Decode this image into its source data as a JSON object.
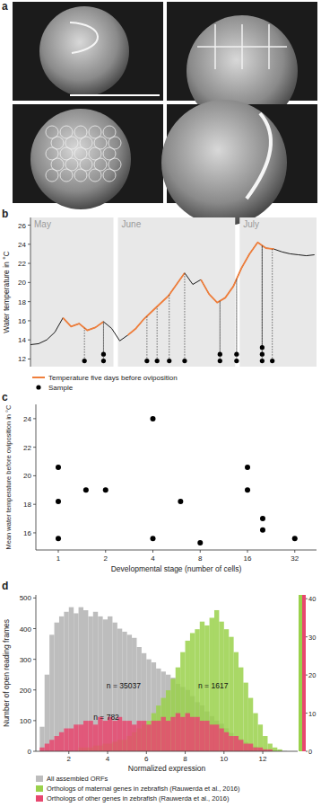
{
  "chart_data": [
    {
      "type": "image",
      "title": "a"
    },
    {
      "type": "line",
      "title": "b",
      "ylabel": "Water temperature in °C",
      "x": [
        0,
        2,
        4,
        6,
        8,
        10,
        12,
        14,
        16,
        18,
        20,
        22,
        24,
        26,
        28,
        30,
        32,
        34,
        36,
        38,
        40,
        42,
        44,
        46,
        48,
        50,
        52,
        54,
        56,
        58,
        60,
        62,
        64,
        66,
        68,
        70
      ],
      "xlim": [
        0,
        70.5
      ],
      "ylim": [
        11.2,
        26.8
      ],
      "yticks": [
        12,
        14,
        16,
        18,
        20,
        22,
        24,
        26
      ],
      "spans": [
        {
          "label": "May",
          "start": 0,
          "end": 21
        },
        {
          "label": "June",
          "start": 21,
          "end": 51
        },
        {
          "label": "July",
          "start": 51,
          "end": 70.5
        }
      ],
      "series": [
        {
          "color": "#1a1a1a",
          "values": [
            13.5,
            13.6,
            14.0,
            14.8,
            16.3,
            15.4,
            15.7,
            15.0,
            15.3,
            15.9,
            15.2,
            13.9,
            14.5,
            15.2,
            16.2,
            17.0,
            17.8,
            18.6,
            19.8,
            21.0,
            19.8,
            20.3,
            18.8,
            17.9,
            18.4,
            19.6,
            21.5,
            23.0,
            24.2,
            23.6,
            23.5,
            23.2,
            23.0,
            22.9,
            22.8,
            22.9
          ]
        },
        {
          "name": "Temperature five days before oviposition",
          "color": "#f07f3c",
          "values": [
            null,
            null,
            null,
            null,
            16.3,
            15.4,
            15.7,
            15.0,
            15.3,
            15.9,
            null,
            null,
            14.5,
            15.2,
            16.2,
            17.0,
            17.8,
            18.6,
            19.8,
            21.0,
            null,
            20.3,
            18.8,
            17.9,
            18.4,
            19.6,
            21.5,
            23.0,
            24.2,
            23.6,
            23.5,
            null,
            null,
            null,
            null,
            null
          ]
        },
        {
          "name": "Sample",
          "type": "scatter",
          "color": "#000000",
          "marker": "circle",
          "x": [
            13.3,
            18.0,
            18.0,
            28.7,
            31.2,
            34.2,
            38.0,
            46.7,
            46.7,
            50.8,
            50.8,
            57.1,
            57.1,
            57.1,
            59.6
          ],
          "values": [
            11.8,
            11.8,
            12.5,
            11.8,
            11.8,
            11.8,
            11.8,
            11.8,
            12.5,
            11.8,
            12.5,
            11.8,
            12.5,
            13.2,
            11.8
          ]
        }
      ],
      "legend": "bottom",
      "grid": false
    },
    {
      "type": "scatter",
      "title": "c",
      "xlabel": "Developmental stage (number of cells)",
      "ylabel": "Mean water temperature before oviposition in °C",
      "x": [
        1,
        1,
        1,
        1.5,
        2,
        4,
        4,
        6,
        8,
        16,
        16,
        20,
        20,
        32
      ],
      "values": [
        20.6,
        18.2,
        15.6,
        19.0,
        19.0,
        24.0,
        15.6,
        18.2,
        15.3,
        20.6,
        19.0,
        17.0,
        16.2,
        15.6
      ],
      "log": "x",
      "xlim": [
        0.72,
        44
      ],
      "ylim": [
        14.8,
        25
      ],
      "xticks": [
        1,
        2,
        4,
        8,
        16,
        32
      ],
      "yticks": [
        16,
        18,
        20,
        22,
        24
      ],
      "color": "#000000",
      "marker": "circle",
      "grid": false
    },
    {
      "type": "histogram",
      "title": "d",
      "xlabel": "Normalized expression",
      "ylabel": "Number of open reading frames",
      "bins": [
        0.5,
        0.75,
        1,
        1.25,
        1.5,
        1.75,
        2,
        2.25,
        2.5,
        2.75,
        3,
        3.25,
        3.5,
        3.75,
        4,
        4.25,
        4.5,
        4.75,
        5,
        5.25,
        5.5,
        5.75,
        6,
        6.25,
        6.5,
        6.75,
        7,
        7.25,
        7.5,
        7.75,
        8,
        8.25,
        8.5,
        8.75,
        9,
        9.25,
        9.5,
        9.75,
        10,
        10.25,
        10.5,
        10.75,
        11,
        11.25,
        11.5,
        11.75,
        12,
        12.25,
        12.5,
        12.75,
        13,
        13.25,
        13.5
      ],
      "xlim": [
        0.3,
        13.8
      ],
      "xticks": [
        2,
        4,
        6,
        8,
        10,
        12
      ],
      "ylim": [
        0,
        510
      ],
      "yticks": [
        0,
        100,
        200,
        300,
        400,
        500
      ],
      "y2lim": [
        0,
        41
      ],
      "y2ticks": [
        0,
        10,
        20,
        30,
        40
      ],
      "series": [
        {
          "name": "All assembled ORFs",
          "color": "#bdbdbd",
          "values": [
            80,
            250,
            380,
            420,
            440,
            455,
            470,
            450,
            470,
            460,
            440,
            455,
            440,
            430,
            440,
            420,
            400,
            390,
            380,
            370,
            340,
            320,
            300,
            290,
            270,
            260,
            250,
            240,
            220,
            210,
            200,
            180,
            160,
            150,
            130,
            115,
            100,
            90,
            75,
            60,
            50,
            40,
            30,
            22,
            15,
            10,
            7,
            4,
            2,
            1,
            1,
            0
          ]
        },
        {
          "name": "Orthologs of maternal genes in zebrafish (Rauwerda et al., 2016)",
          "color": "#9ad14b",
          "axis": "y2",
          "values": [
            0,
            0,
            0,
            0,
            0,
            0,
            0,
            0,
            1,
            1,
            1,
            1.5,
            1.5,
            2,
            2,
            2.5,
            3,
            3,
            4,
            5,
            6,
            7,
            8,
            10,
            12,
            14,
            16,
            19,
            22,
            26,
            29,
            31,
            32,
            34,
            33,
            35,
            37,
            34,
            32,
            30,
            26,
            22,
            18,
            14,
            10,
            7,
            4,
            2,
            1,
            0.5,
            0,
            0
          ]
        },
        {
          "name": "Orthologs of other genes in zebrafish (Rauwerda et al., 2016)",
          "color": "#e8476f",
          "axis": "y2",
          "values": [
            1,
            2,
            3,
            4,
            5,
            6,
            6,
            7,
            7,
            8,
            8,
            7,
            9,
            8,
            9,
            8,
            9,
            8,
            8,
            7,
            8,
            8,
            7,
            8,
            8,
            9,
            8,
            9,
            10,
            9,
            10,
            9,
            9,
            8,
            8,
            7,
            7,
            6,
            5,
            4,
            4,
            3,
            2,
            2,
            1,
            1,
            0.5,
            0.5,
            0,
            0,
            0,
            0
          ]
        }
      ],
      "annotations": [
        "n = 35037",
        "n = 1617",
        "n = 782"
      ],
      "legend": "bottom",
      "grid": false
    }
  ]
}
